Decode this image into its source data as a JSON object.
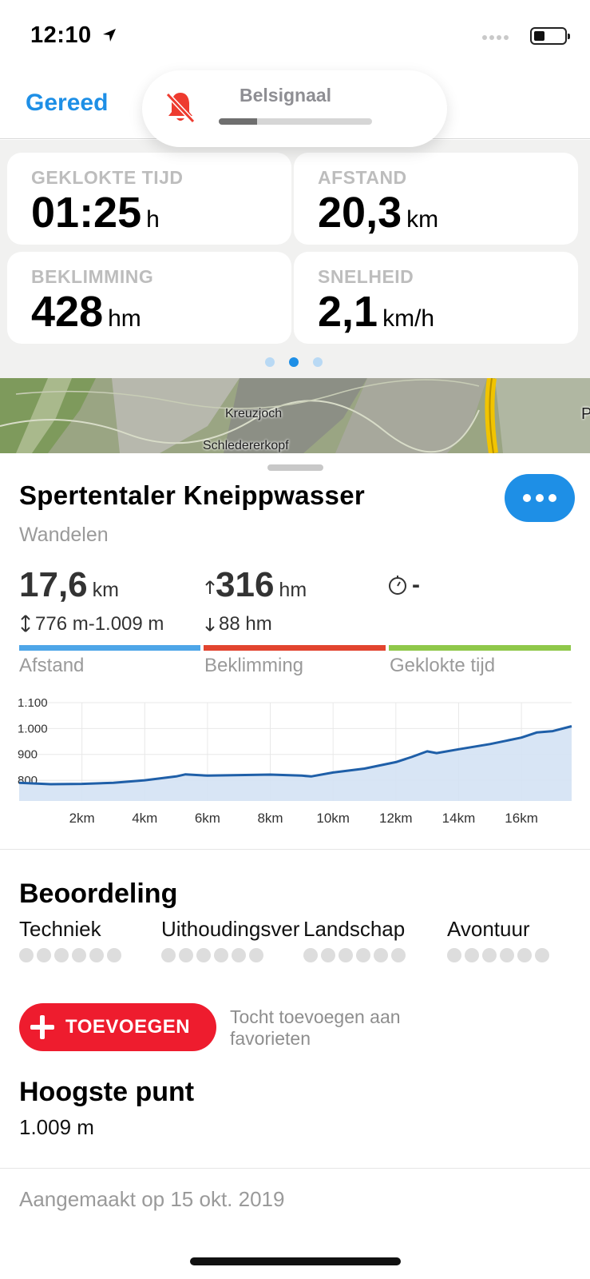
{
  "status_bar": {
    "time": "12:10"
  },
  "header": {
    "done_label": "Gereed"
  },
  "ringer": {
    "label": "Belsignaal",
    "level": 0.25
  },
  "stats": [
    {
      "label": "GEKLOKTE TIJD",
      "value": "01:25",
      "unit": "h"
    },
    {
      "label": "AFSTAND",
      "value": "20,3",
      "unit": "km"
    },
    {
      "label": "BEKLIMMING",
      "value": "428",
      "unit": "hm"
    },
    {
      "label": "SNELHEID",
      "value": "2,1",
      "unit": "km/h"
    }
  ],
  "map": {
    "labels": [
      "Kreuzjoch",
      "Schledererkopf"
    ],
    "partial_label": "P"
  },
  "route": {
    "title": "Spertentaler Kneippwasser",
    "activity": "Wandelen",
    "distance_value": "17,6",
    "distance_unit": "km",
    "elevation_range": "776 m-1.009 m",
    "ascent_value": "316",
    "ascent_unit": "hm",
    "descent": "88 hm",
    "timer_value": "-",
    "bar_labels": [
      "Afstand",
      "Beklimming",
      "Geklokte tijd"
    ],
    "bar_colors": [
      "#4ea6e8",
      "#e2442f",
      "#8fc84a"
    ]
  },
  "chart_data": {
    "type": "area",
    "xlabel": "",
    "ylabel": "",
    "x_tick_labels": [
      "2km",
      "4km",
      "6km",
      "8km",
      "10km",
      "12km",
      "14km",
      "16km"
    ],
    "y_tick_labels": [
      "1.100",
      "1.000",
      "900",
      "800"
    ],
    "xlim": [
      0,
      17.6
    ],
    "ylim": [
      720,
      1100
    ],
    "series": [
      {
        "x": [
          0,
          1,
          2,
          3,
          4,
          5,
          5.3,
          6,
          7,
          8,
          9,
          9.3,
          10,
          11,
          12,
          12.5,
          13,
          13.3,
          14,
          15,
          16,
          16.5,
          17,
          17.6
        ],
        "y": [
          790,
          785,
          786,
          790,
          800,
          815,
          823,
          818,
          820,
          822,
          818,
          815,
          830,
          845,
          870,
          890,
          912,
          905,
          920,
          940,
          965,
          985,
          990,
          1009
        ]
      }
    ],
    "line_color": "#1f5fa8",
    "fill_color": "#d4e2f4"
  },
  "rating": {
    "title": "Beoordeling",
    "categories": [
      "Techniek",
      "Uithoudingsvermogen",
      "Landschap",
      "Avontuur"
    ]
  },
  "favorite": {
    "button_label": "TOEVOEGEN",
    "hint": "Tocht toevoegen aan favorieten"
  },
  "highest_point": {
    "title": "Hoogste punt",
    "value": "1.009 m"
  },
  "created": "Aangemaakt op 15 okt. 2019"
}
